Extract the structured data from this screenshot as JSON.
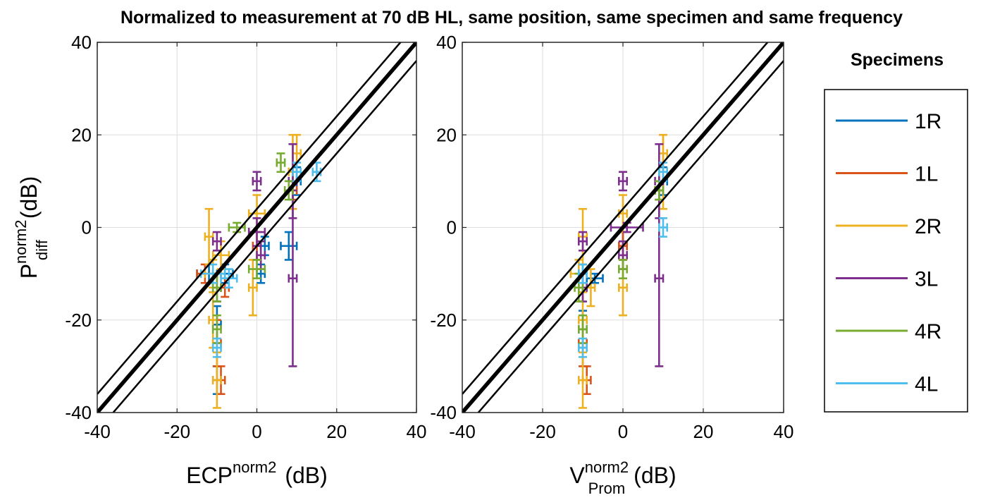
{
  "figure_title": "Normalized to measurement at 70 dB HL, same position, same specimen and same frequency",
  "legend": {
    "title": "Specimens",
    "placement": "right-outside",
    "entries": [
      {
        "label": "1R",
        "color": "#0072BD"
      },
      {
        "label": "1L",
        "color": "#D95319"
      },
      {
        "label": "2R",
        "color": "#EDB120"
      },
      {
        "label": "3L",
        "color": "#7E2F8E"
      },
      {
        "label": "4R",
        "color": "#77AC30"
      },
      {
        "label": "4L",
        "color": "#4DBEEE"
      }
    ]
  },
  "chart_data": [
    {
      "type": "scatter",
      "name": "left-panel",
      "xlabel": {
        "base": "ECP",
        "sup": "norm2",
        "sub": "",
        "unit": "(dB)"
      },
      "ylabel": {
        "base": "P",
        "sup": "norm2",
        "sub": "diff",
        "unit": "(dB)"
      },
      "xlim": [
        -40,
        40
      ],
      "ylim": [
        -40,
        40
      ],
      "xticks": [
        -40,
        -20,
        0,
        20,
        40
      ],
      "yticks": [
        -40,
        -20,
        0,
        20,
        40
      ],
      "grid": true,
      "reference_lines": [
        {
          "name": "identity",
          "offset": 0,
          "weight": "thick"
        },
        {
          "name": "upper-bound",
          "offset": 4,
          "weight": "thin"
        },
        {
          "name": "lower-bound",
          "offset": -4,
          "weight": "thin"
        }
      ],
      "series": [
        {
          "name": "1R",
          "points": [
            {
              "x": -12,
              "y": -10,
              "ex": 3,
              "ey": 2
            },
            {
              "x": -10,
              "y": -21,
              "ex": 1,
              "ey": 4
            },
            {
              "x": -10,
              "y": -33,
              "ex": 1,
              "ey": 3
            },
            {
              "x": -8,
              "y": -10,
              "ex": 2,
              "ey": 2
            },
            {
              "x": 1,
              "y": -10,
              "ex": 1,
              "ey": 2
            },
            {
              "x": 2,
              "y": -4,
              "ex": 1,
              "ey": 2
            },
            {
              "x": 8,
              "y": -4,
              "ex": 2,
              "ey": 3
            },
            {
              "x": 10,
              "y": 10,
              "ex": 1,
              "ey": 3
            }
          ]
        },
        {
          "name": "1L",
          "points": [
            {
              "x": -13,
              "y": -10,
              "ex": 2,
              "ey": 2
            },
            {
              "x": -10,
              "y": -25,
              "ex": 1,
              "ey": 5
            },
            {
              "x": -9,
              "y": -33,
              "ex": 1,
              "ey": 3
            },
            {
              "x": -8,
              "y": -13,
              "ex": 1,
              "ey": 2
            },
            {
              "x": 0,
              "y": -4,
              "ex": 1,
              "ey": 3
            },
            {
              "x": 9,
              "y": 8,
              "ex": 1,
              "ey": 2
            }
          ]
        },
        {
          "name": "2R",
          "points": [
            {
              "x": -12,
              "y": -2,
              "ex": 1,
              "ey": 6
            },
            {
              "x": -11,
              "y": -10,
              "ex": 2,
              "ey": 3
            },
            {
              "x": -11,
              "y": -20,
              "ex": 1,
              "ey": 6
            },
            {
              "x": -10,
              "y": -33,
              "ex": 1,
              "ey": 6
            },
            {
              "x": -9,
              "y": -6,
              "ex": 2,
              "ey": 3
            },
            {
              "x": -1,
              "y": -13,
              "ex": 1,
              "ey": 6
            },
            {
              "x": 0,
              "y": 3,
              "ex": 2,
              "ey": 4
            },
            {
              "x": 9,
              "y": 12,
              "ex": 1,
              "ey": 8
            },
            {
              "x": 10,
              "y": 16,
              "ex": 1,
              "ey": 4
            }
          ]
        },
        {
          "name": "3L",
          "points": [
            {
              "x": -10,
              "y": -3,
              "ex": 1,
              "ey": 2
            },
            {
              "x": -10,
              "y": -13,
              "ex": 1,
              "ey": 3
            },
            {
              "x": 0,
              "y": 10,
              "ex": 1,
              "ey": 2
            },
            {
              "x": 0,
              "y": -1,
              "ex": 2,
              "ey": 3
            },
            {
              "x": 1,
              "y": -6,
              "ex": 1,
              "ey": 3
            },
            {
              "x": 9,
              "y": 10,
              "ex": 1,
              "ey": 8
            },
            {
              "x": 9,
              "y": -11,
              "ex": 1,
              "ey": 19
            }
          ]
        },
        {
          "name": "4R",
          "points": [
            {
              "x": -5,
              "y": 0,
              "ex": 2,
              "ey": 1
            },
            {
              "x": -10,
              "y": -13,
              "ex": 1,
              "ey": 3
            },
            {
              "x": -10,
              "y": -22,
              "ex": 1,
              "ey": 3
            },
            {
              "x": 0,
              "y": -9,
              "ex": 2,
              "ey": 2
            },
            {
              "x": 6,
              "y": 14,
              "ex": 1,
              "ey": 2
            },
            {
              "x": 8,
              "y": 8,
              "ex": 1,
              "ey": 2
            }
          ]
        },
        {
          "name": "4L",
          "points": [
            {
              "x": -11,
              "y": -10,
              "ex": 3,
              "ey": 2
            },
            {
              "x": -10,
              "y": -26,
              "ex": 1,
              "ey": 2
            },
            {
              "x": -7,
              "y": -11,
              "ex": 2,
              "ey": 2
            },
            {
              "x": 10,
              "y": 12,
              "ex": 1,
              "ey": 2
            },
            {
              "x": 15,
              "y": 12,
              "ex": 1,
              "ey": 2
            }
          ]
        }
      ]
    },
    {
      "type": "scatter",
      "name": "right-panel",
      "xlabel": {
        "base": "V",
        "sup": "norm2",
        "sub": "Prom",
        "unit": "(dB)"
      },
      "ylabel": null,
      "xlim": [
        -40,
        40
      ],
      "ylim": [
        -40,
        40
      ],
      "xticks": [
        -40,
        -20,
        0,
        20,
        40
      ],
      "yticks": [
        -40,
        -20,
        0,
        20,
        40
      ],
      "grid": true,
      "reference_lines": [
        {
          "name": "identity",
          "offset": 0,
          "weight": "thick"
        },
        {
          "name": "upper-bound",
          "offset": 4,
          "weight": "thin"
        },
        {
          "name": "lower-bound",
          "offset": -4,
          "weight": "thin"
        }
      ],
      "series": [
        {
          "name": "1R",
          "points": [
            {
              "x": -10,
              "y": -10,
              "ex": 1,
              "ey": 2
            },
            {
              "x": -10,
              "y": -22,
              "ex": 1,
              "ey": 4
            },
            {
              "x": -7,
              "y": -11,
              "ex": 2,
              "ey": 1
            },
            {
              "x": 0,
              "y": -4,
              "ex": 1,
              "ey": 3
            },
            {
              "x": 10,
              "y": 10,
              "ex": 1,
              "ey": 3
            }
          ]
        },
        {
          "name": "1L",
          "points": [
            {
              "x": -10,
              "y": -25,
              "ex": 1,
              "ey": 5
            },
            {
              "x": -9,
              "y": -33,
              "ex": 1,
              "ey": 3
            },
            {
              "x": 0,
              "y": -4,
              "ex": 1,
              "ey": 3
            },
            {
              "x": 9,
              "y": 8,
              "ex": 1,
              "ey": 2
            }
          ]
        },
        {
          "name": "2R",
          "points": [
            {
              "x": -10,
              "y": -2,
              "ex": 1,
              "ey": 6
            },
            {
              "x": -11,
              "y": -10,
              "ex": 2,
              "ey": 3
            },
            {
              "x": -10,
              "y": -20,
              "ex": 1,
              "ey": 6
            },
            {
              "x": -10,
              "y": -33,
              "ex": 1,
              "ey": 6
            },
            {
              "x": -8,
              "y": -13,
              "ex": 1,
              "ey": 4
            },
            {
              "x": 0,
              "y": -13,
              "ex": 1,
              "ey": 6
            },
            {
              "x": 0,
              "y": 3,
              "ex": 1,
              "ey": 4
            },
            {
              "x": 10,
              "y": 12,
              "ex": 1,
              "ey": 8
            },
            {
              "x": 10,
              "y": 16,
              "ex": 1,
              "ey": 4
            }
          ]
        },
        {
          "name": "3L",
          "points": [
            {
              "x": -10,
              "y": -3,
              "ex": 1,
              "ey": 2
            },
            {
              "x": -10,
              "y": -13,
              "ex": 1,
              "ey": 3
            },
            {
              "x": 0,
              "y": 10,
              "ex": 1,
              "ey": 2
            },
            {
              "x": 1,
              "y": 0,
              "ex": 4,
              "ey": 1
            },
            {
              "x": 0,
              "y": -6,
              "ex": 1,
              "ey": 3
            },
            {
              "x": 9,
              "y": 10,
              "ex": 1,
              "ey": 8
            },
            {
              "x": 9,
              "y": -11,
              "ex": 1,
              "ey": 19
            }
          ]
        },
        {
          "name": "4R",
          "points": [
            {
              "x": -11,
              "y": -13,
              "ex": 1,
              "ey": 3
            },
            {
              "x": -10,
              "y": -22,
              "ex": 1,
              "ey": 3
            },
            {
              "x": 0,
              "y": -9,
              "ex": 1,
              "ey": 2
            },
            {
              "x": 9,
              "y": 8,
              "ex": 1,
              "ey": 2
            }
          ]
        },
        {
          "name": "4L",
          "points": [
            {
              "x": -10,
              "y": -10,
              "ex": 1,
              "ey": 2
            },
            {
              "x": -10,
              "y": -26,
              "ex": 1,
              "ey": 2
            },
            {
              "x": 10,
              "y": 12,
              "ex": 1,
              "ey": 2
            },
            {
              "x": 10,
              "y": 0,
              "ex": 1,
              "ey": 2
            }
          ]
        }
      ]
    }
  ]
}
